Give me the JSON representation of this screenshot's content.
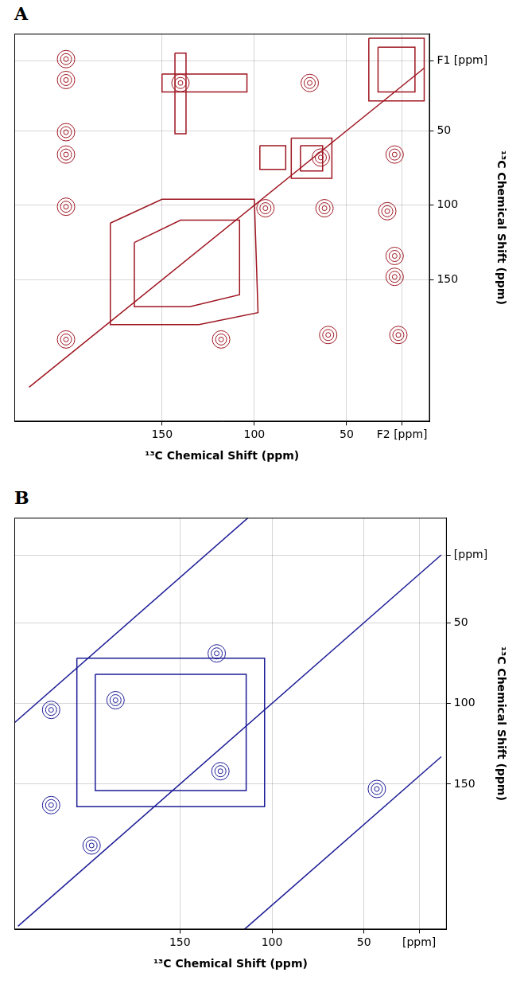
{
  "chart_data": [
    {
      "type": "scatter",
      "panel_label": "A",
      "x_label": "¹³C Chemical Shift (ppm)",
      "y_label": "¹³C Chemical Shift (ppm)",
      "xlim": [
        230,
        5
      ],
      "ylim": [
        245,
        -15
      ],
      "xticks": [
        150,
        100,
        50,
        {
          "value": 20,
          "label": "F2 [ppm]"
        }
      ],
      "yticks": [
        {
          "value": 3,
          "label": "F1 [ppm]"
        },
        50,
        100,
        150
      ],
      "grid": true,
      "color": "#9e1520",
      "series": [
        {
          "type": "line",
          "line_style": "solid",
          "x": [
            222,
            8
          ],
          "values": [
            222,
            8
          ]
        },
        {
          "type": "line",
          "line_style": "solid",
          "x": [
            38,
            8,
            8,
            38,
            38
          ],
          "values": [
            -12,
            -12,
            30,
            30,
            -12
          ]
        },
        {
          "type": "line",
          "line_style": "solid",
          "x": [
            33,
            13,
            13,
            33,
            33
          ],
          "values": [
            -6,
            -6,
            24,
            24,
            -6
          ]
        },
        {
          "type": "line",
          "line_style": "solid",
          "x": [
            178,
            150,
            100,
            98,
            130,
            178,
            178
          ],
          "values": [
            112,
            96,
            96,
            172,
            180,
            180,
            112
          ]
        },
        {
          "type": "line",
          "line_style": "solid",
          "x": [
            165,
            140,
            108,
            108,
            135,
            165,
            165
          ],
          "values": [
            125,
            110,
            110,
            160,
            168,
            168,
            125
          ]
        },
        {
          "type": "line",
          "line_style": "solid",
          "x": [
            150,
            104,
            104,
            150,
            150
          ],
          "values": [
            12,
            12,
            24,
            24,
            12
          ]
        },
        {
          "type": "line",
          "line_style": "solid",
          "x": [
            143,
            137,
            137,
            143,
            143
          ],
          "values": [
            -2,
            -2,
            52,
            52,
            -2
          ]
        },
        {
          "type": "line",
          "line_style": "solid",
          "x": [
            80,
            58,
            58,
            80,
            80
          ],
          "values": [
            55,
            55,
            82,
            82,
            55
          ]
        },
        {
          "type": "line",
          "line_style": "solid",
          "x": [
            75,
            63,
            63,
            75,
            75
          ],
          "values": [
            60,
            60,
            77,
            77,
            60
          ]
        },
        {
          "type": "line",
          "line_style": "solid",
          "x": [
            97,
            83,
            83,
            97,
            97
          ],
          "values": [
            60,
            60,
            76,
            76,
            60
          ]
        },
        {
          "type": "scatter",
          "marker": "circle",
          "x": [
            202,
            202,
            202,
            202,
            202,
            202,
            64,
            62,
            60,
            24,
            28,
            24,
            24,
            22,
            118,
            94,
            140,
            70
          ],
          "values": [
            2,
            16,
            51,
            66,
            101,
            190,
            68,
            102,
            187,
            66,
            104,
            134,
            148,
            187,
            190,
            102,
            18,
            18
          ]
        }
      ]
    },
    {
      "type": "scatter",
      "panel_label": "B",
      "x_label": "¹³C Chemical Shift (ppm)",
      "y_label": "¹³C Chemical Shift (ppm)",
      "xlim": [
        240,
        5
      ],
      "ylim": [
        240,
        -15
      ],
      "xticks": [
        150,
        100,
        50,
        {
          "value": 20,
          "label": "[ppm]"
        }
      ],
      "yticks": [
        {
          "value": 8,
          "label": "[ppm]"
        },
        50,
        100,
        150
      ],
      "grid": true,
      "color": "#1c1c96",
      "series": [
        {
          "type": "line",
          "line_style": "solid",
          "x": [
            238,
            8
          ],
          "values": [
            238,
            8
          ]
        },
        {
          "type": "line",
          "line_style": "solid",
          "x": [
            240,
            113
          ],
          "values": [
            112,
            -15
          ]
        },
        {
          "type": "line",
          "line_style": "solid",
          "x": [
            8,
            115
          ],
          "values": [
            133,
            240
          ]
        },
        {
          "type": "line",
          "line_style": "solid",
          "x": [
            206,
            104,
            104,
            206,
            206
          ],
          "values": [
            72,
            72,
            164,
            164,
            72
          ]
        },
        {
          "type": "line",
          "line_style": "solid",
          "x": [
            196,
            114,
            114,
            196,
            196
          ],
          "values": [
            82,
            82,
            154,
            154,
            82
          ]
        },
        {
          "type": "scatter",
          "marker": "circle",
          "x": [
            185,
            128,
            220,
            220,
            198,
            130,
            43
          ],
          "values": [
            98,
            142,
            104,
            163,
            188,
            69,
            153
          ]
        }
      ]
    }
  ]
}
